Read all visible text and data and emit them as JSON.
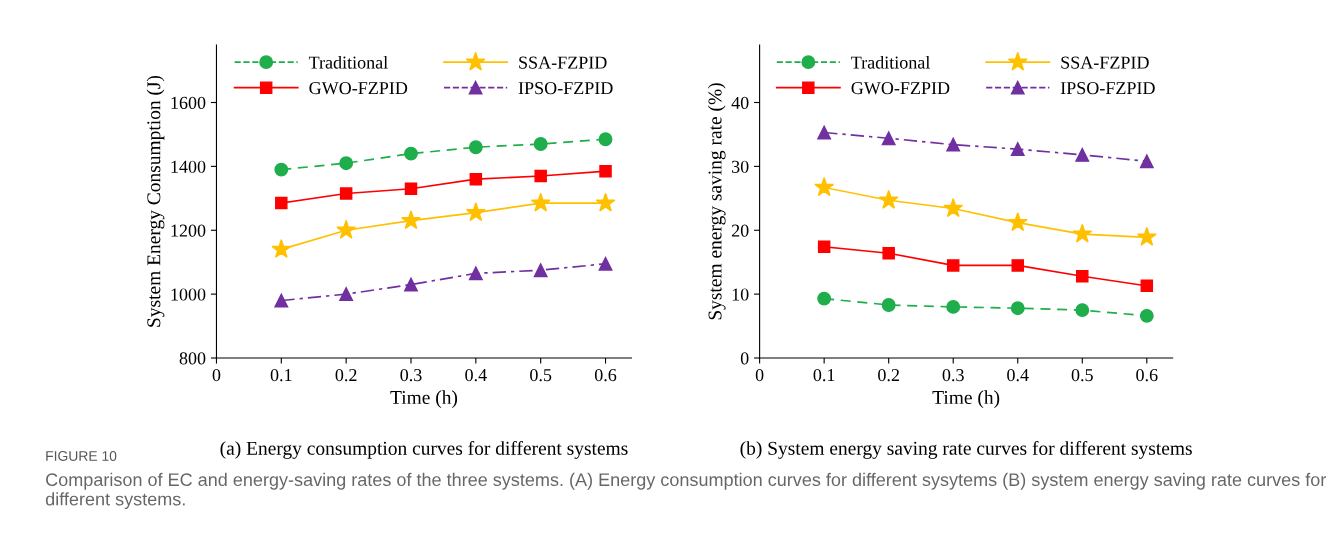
{
  "chart_data": [
    {
      "type": "line",
      "xlabel": "Time (h)",
      "ylabel": "System Energy Consumption (J)",
      "x": [
        0.1,
        0.2,
        0.3,
        0.4,
        0.5,
        0.6
      ],
      "series": [
        {
          "name": "Traditional",
          "color": "#1fae4b",
          "marker": "circle",
          "line_style": "dashed",
          "values": [
            1390,
            1410,
            1440,
            1460,
            1470,
            1485
          ]
        },
        {
          "name": "SSA-FZPID",
          "color": "#ffc000",
          "marker": "star",
          "line_style": "solid",
          "values": [
            1140,
            1200,
            1230,
            1255,
            1285,
            1285
          ]
        },
        {
          "name": "GWO-FZPID",
          "color": "#ff0000",
          "marker": "square",
          "line_style": "solid",
          "values": [
            1285,
            1315,
            1330,
            1360,
            1370,
            1385
          ]
        },
        {
          "name": "IPSO-FZPID",
          "color": "#7030a0",
          "marker": "triangle",
          "line_style": "dashdot",
          "values": [
            980,
            1000,
            1030,
            1065,
            1075,
            1095
          ]
        }
      ],
      "xlim": [
        0,
        0.64
      ],
      "xticks": [
        0,
        0.1,
        0.2,
        0.3,
        0.4,
        0.5,
        0.6
      ],
      "ylim": [
        800,
        1780
      ],
      "yticks": [
        800,
        1000,
        1200,
        1400,
        1600
      ],
      "grid": false,
      "legend": "top",
      "annotations": [
        "(a) Energy consumption curves for different systems",
        "FIGURE 10",
        "Comparison of EC and energy-saving rates of the three systems. (A) Energy consumption curves for different sysytems (B) system energy saving rate curves for different systems."
      ]
    },
    {
      "type": "line",
      "xlabel": "Time (h)",
      "ylabel": "System energy saving rate (%)",
      "x": [
        0.1,
        0.2,
        0.3,
        0.4,
        0.5,
        0.6
      ],
      "series": [
        {
          "name": "Traditional",
          "color": "#1fae4b",
          "marker": "circle",
          "line_style": "dashed",
          "values": [
            9.3,
            8.3,
            8.0,
            7.8,
            7.5,
            6.6
          ]
        },
        {
          "name": "SSA-FZPID",
          "color": "#ffc000",
          "marker": "star",
          "line_style": "solid",
          "values": [
            26.7,
            24.7,
            23.4,
            21.2,
            19.4,
            18.9
          ]
        },
        {
          "name": "GWO-FZPID",
          "color": "#ff0000",
          "marker": "square",
          "line_style": "solid",
          "values": [
            17.4,
            16.4,
            14.5,
            14.5,
            12.8,
            11.3
          ]
        },
        {
          "name": "IPSO-FZPID",
          "color": "#7030a0",
          "marker": "triangle",
          "line_style": "dashdot",
          "values": [
            35.3,
            34.4,
            33.4,
            32.7,
            31.8,
            30.8
          ]
        }
      ],
      "xlim": [
        0,
        0.64
      ],
      "xticks": [
        0,
        0.1,
        0.2,
        0.3,
        0.4,
        0.5,
        0.6
      ],
      "ylim": [
        0,
        49
      ],
      "yticks": [
        0,
        10,
        20,
        30,
        40
      ],
      "grid": false,
      "legend": "top",
      "annotations": [
        "(b) System energy saving rate curves for different systems"
      ]
    }
  ]
}
